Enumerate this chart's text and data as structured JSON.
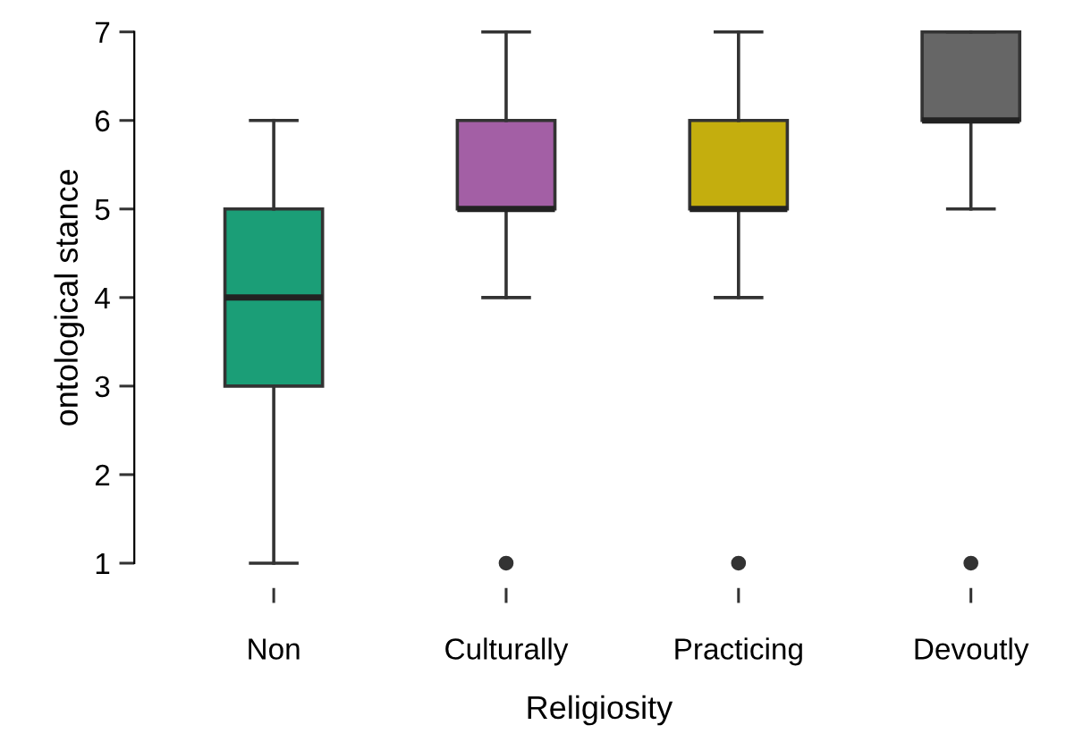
{
  "chart_data": {
    "type": "box",
    "xlabel": "Religiosity",
    "ylabel": "ontological stance",
    "categories": [
      "Non",
      "Culturally",
      "Practicing",
      "Devoutly"
    ],
    "colors": [
      "#1b9e77",
      "#a35fa5",
      "#c4ae0e",
      "#666666"
    ],
    "boxes": [
      {
        "low": 1,
        "q1": 3,
        "median": 4,
        "q3": 5,
        "high": 6
      },
      {
        "low": 4,
        "q1": 5,
        "median": 5,
        "q3": 6,
        "high": 7,
        "outliers": [
          1
        ]
      },
      {
        "low": 4,
        "q1": 5,
        "median": 5,
        "q3": 6,
        "high": 7,
        "outliers": [
          1
        ]
      },
      {
        "low": 5,
        "q1": 6,
        "median": 6,
        "q3": 7,
        "high": 7,
        "outliers": [
          1
        ]
      }
    ],
    "ylim": [
      1,
      7
    ],
    "yticks": [
      1,
      2,
      3,
      4,
      5,
      6,
      7
    ],
    "grid": false,
    "legend": false
  }
}
